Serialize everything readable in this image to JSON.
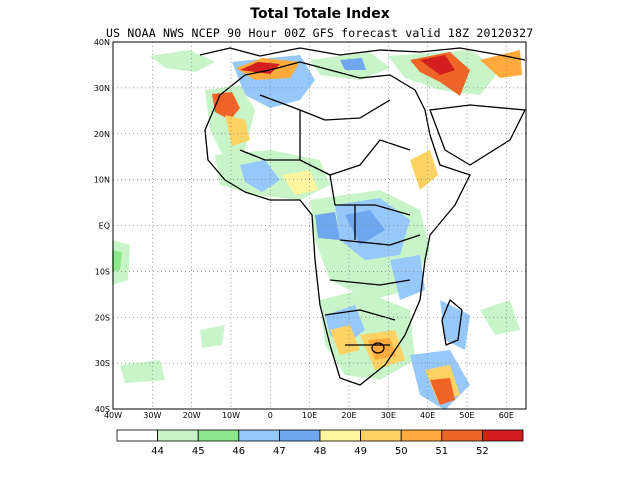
{
  "title": "Total Totale Index",
  "subtitle": "US NOAA NWS NCEP 90 Hour 00Z GFS forecast valid 18Z 20120327",
  "map": {
    "region": "Africa",
    "lon_range": [
      -40,
      65
    ],
    "lat_range": [
      -40,
      40
    ],
    "grid": true,
    "lat_ticks": [
      "40N",
      "30N",
      "20N",
      "10N",
      "EQ",
      "10S",
      "20S",
      "30S",
      "40S"
    ],
    "lon_ticks": [
      "40W",
      "30W",
      "20W",
      "10W",
      "0",
      "10E",
      "20E",
      "30E",
      "40E",
      "50E",
      "60E"
    ]
  },
  "colorbar": {
    "colors": [
      "#ffffff",
      "#c8f5c8",
      "#8ce68c",
      "#96c8fa",
      "#6ea6f0",
      "#fff5a0",
      "#ffd264",
      "#ffaa3c",
      "#f06428",
      "#d21e1e"
    ],
    "labels": [
      "44",
      "45",
      "46",
      "47",
      "48",
      "49",
      "50",
      "51",
      "52"
    ]
  }
}
